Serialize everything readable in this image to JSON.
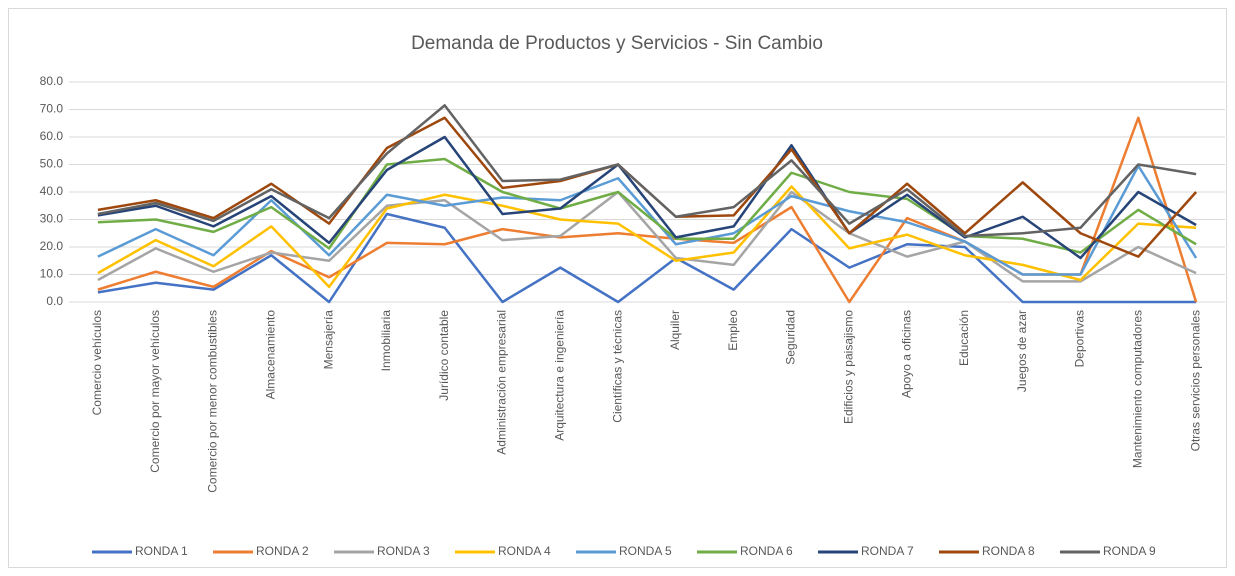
{
  "chart_data": {
    "type": "line",
    "title": "Demanda de Productos y Servicios - Sin Cambio",
    "categories": [
      "Comercio vehículos",
      "Comercio por mayor vehículos",
      "Comercio por menor combustibles",
      "Almacenamiento",
      "Mensajería",
      "Inmobiliaria",
      "Jurídico contable",
      "Administración empresarial",
      "Arquitectura e ingeniería",
      "Científicas y técnicas",
      "Alquiler",
      "Empleo",
      "Seguridad",
      "Edificios y paisajismo",
      "Apoyo a oficinas",
      "Educación",
      "Juegos de azar",
      "Deportivas",
      "Mantenimiento computadores",
      "Otras servicios personales"
    ],
    "series": [
      {
        "name": "RONDA 1",
        "color": "#4472c4",
        "values": [
          3.5,
          7,
          4.5,
          17,
          0,
          32,
          27,
          0,
          12.5,
          0,
          16,
          4.5,
          26.5,
          12.5,
          21,
          20,
          0,
          0,
          0,
          0
        ]
      },
      {
        "name": "RONDA 2",
        "color": "#ed7d31",
        "values": [
          4.5,
          11,
          5.5,
          18.5,
          9,
          21.5,
          21,
          26.5,
          23.5,
          25,
          23,
          21.5,
          34.5,
          0,
          30.5,
          22,
          10,
          10,
          67,
          0
        ]
      },
      {
        "name": "RONDA 3",
        "color": "#a5a5a5",
        "values": [
          8,
          19.5,
          11,
          18,
          15,
          35,
          37,
          22.5,
          24,
          40,
          16,
          13.5,
          40,
          25,
          16.5,
          22,
          7.5,
          7.5,
          20,
          10.5
        ]
      },
      {
        "name": "RONDA 4",
        "color": "#ffc000",
        "values": [
          10.5,
          22.5,
          13,
          27.5,
          5.5,
          34,
          39,
          35,
          30,
          28.5,
          15,
          18,
          42,
          19.5,
          24.5,
          17,
          13.5,
          8,
          28.5,
          27
        ]
      },
      {
        "name": "RONDA 5",
        "color": "#5b9bd5",
        "values": [
          16.5,
          26.5,
          17,
          37,
          17,
          39,
          35,
          38,
          37,
          45,
          21,
          25,
          38.5,
          33,
          29,
          22,
          10,
          10,
          49.5,
          16
        ]
      },
      {
        "name": "RONDA 6",
        "color": "#70ad47",
        "values": [
          29,
          30,
          25.5,
          34.5,
          19.5,
          50,
          52,
          40,
          34,
          40,
          23,
          23,
          47,
          40,
          37.5,
          24,
          23,
          18,
          33.5,
          21
        ]
      },
      {
        "name": "RONDA 7",
        "color": "#264478",
        "values": [
          31.5,
          35,
          27.5,
          38.5,
          21.5,
          48,
          60,
          32,
          34,
          50,
          23.5,
          27.5,
          57,
          25,
          39,
          23.5,
          31,
          16,
          40,
          28
        ]
      },
      {
        "name": "RONDA 8",
        "color": "#9e480e",
        "values": [
          33.5,
          37,
          30.5,
          43,
          28.5,
          56,
          67,
          41.5,
          44,
          50,
          31,
          31.5,
          55.5,
          25,
          43,
          25,
          43.5,
          25,
          16.5,
          40
        ]
      },
      {
        "name": "RONDA 9",
        "color": "#636363",
        "values": [
          32,
          36,
          29.5,
          41,
          30.5,
          54,
          71.5,
          44,
          44.5,
          50,
          31,
          34.5,
          51.5,
          28.5,
          41,
          24,
          25,
          27,
          50,
          46.5
        ]
      }
    ],
    "ylim": [
      0,
      80
    ],
    "yticks": [
      {
        "value": 0,
        "label": "0.0"
      },
      {
        "value": 10,
        "label": "10.0"
      },
      {
        "value": 20,
        "label": "20.0"
      },
      {
        "value": 30,
        "label": "30.0"
      },
      {
        "value": 40,
        "label": "40.0"
      },
      {
        "value": 50,
        "label": "50.0"
      },
      {
        "value": 60,
        "label": "60.0"
      },
      {
        "value": 70,
        "label": "70.0"
      },
      {
        "value": 80,
        "label": "80.0"
      }
    ],
    "grid": true,
    "legend": "bottom"
  }
}
